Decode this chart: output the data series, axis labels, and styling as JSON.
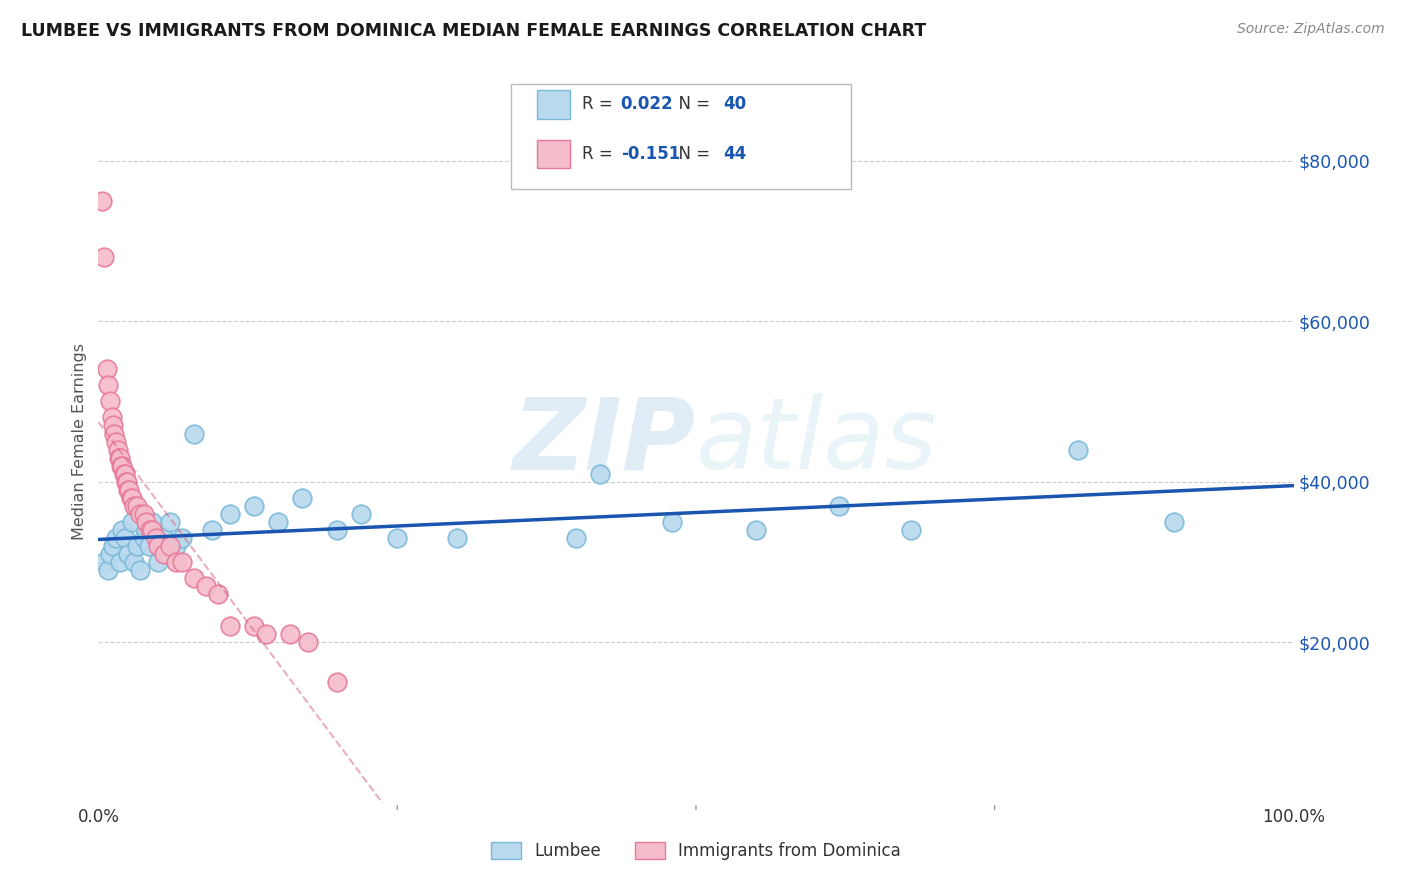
{
  "title": "LUMBEE VS IMMIGRANTS FROM DOMINICA MEDIAN FEMALE EARNINGS CORRELATION CHART",
  "source_text": "Source: ZipAtlas.com",
  "ylabel": "Median Female Earnings",
  "watermark": "ZIPatlas",
  "legend_lumbee": "Lumbee",
  "legend_dominica": "Immigrants from Dominica",
  "lumbee_R": 0.022,
  "lumbee_N": 40,
  "dominica_R": -0.151,
  "dominica_N": 44,
  "lumbee_color": "#7ab8d9",
  "lumbee_face": "#b8d9ee",
  "dominica_color": "#e8799a",
  "dominica_face": "#f5bccb",
  "lumbee_line_color": "#1a56b0",
  "dominica_line_color": "#d46080",
  "grid_color": "#cccccc",
  "background_color": "#ffffff",
  "xlim": [
    0.0,
    1.0
  ],
  "ylim": [
    0,
    90000
  ],
  "yticks": [
    20000,
    40000,
    60000,
    80000
  ],
  "ytick_labels": [
    "$20,000",
    "$40,000",
    "$60,000",
    "$80,000"
  ],
  "lumbee_x": [
    0.005,
    0.008,
    0.01,
    0.012,
    0.015,
    0.018,
    0.02,
    0.022,
    0.025,
    0.028,
    0.03,
    0.032,
    0.035,
    0.038,
    0.04,
    0.042,
    0.045,
    0.05,
    0.055,
    0.06,
    0.065,
    0.07,
    0.08,
    0.095,
    0.11,
    0.13,
    0.15,
    0.17,
    0.2,
    0.22,
    0.25,
    0.3,
    0.4,
    0.42,
    0.48,
    0.55,
    0.62,
    0.68,
    0.82,
    0.9
  ],
  "lumbee_y": [
    30000,
    29000,
    31000,
    32000,
    33000,
    30000,
    34000,
    33000,
    31000,
    35000,
    30000,
    32000,
    29000,
    33000,
    34000,
    32000,
    35000,
    30000,
    33000,
    35000,
    32000,
    33000,
    46000,
    34000,
    36000,
    37000,
    35000,
    38000,
    34000,
    36000,
    33000,
    33000,
    33000,
    41000,
    35000,
    34000,
    37000,
    34000,
    44000,
    35000
  ],
  "dominica_x": [
    0.003,
    0.005,
    0.007,
    0.008,
    0.01,
    0.011,
    0.012,
    0.013,
    0.015,
    0.016,
    0.017,
    0.018,
    0.019,
    0.02,
    0.021,
    0.022,
    0.023,
    0.024,
    0.025,
    0.026,
    0.027,
    0.028,
    0.03,
    0.032,
    0.035,
    0.038,
    0.04,
    0.043,
    0.045,
    0.048,
    0.05,
    0.055,
    0.06,
    0.065,
    0.07,
    0.08,
    0.09,
    0.1,
    0.11,
    0.13,
    0.14,
    0.16,
    0.175,
    0.2
  ],
  "dominica_y": [
    75000,
    68000,
    54000,
    52000,
    50000,
    48000,
    47000,
    46000,
    45000,
    44000,
    43000,
    43000,
    42000,
    42000,
    41000,
    41000,
    40000,
    40000,
    39000,
    39000,
    38000,
    38000,
    37000,
    37000,
    36000,
    36000,
    35000,
    34000,
    34000,
    33000,
    32000,
    31000,
    32000,
    30000,
    30000,
    28000,
    27000,
    26000,
    22000,
    22000,
    21000,
    21000,
    20000,
    15000
  ]
}
